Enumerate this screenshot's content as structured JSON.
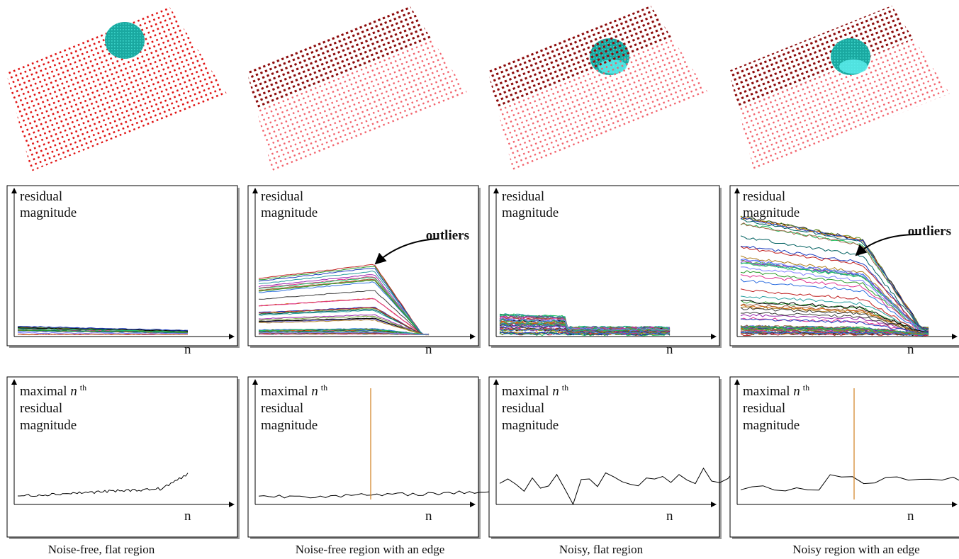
{
  "panels": [
    {
      "caption": "Noise-free, flat region",
      "residual_plot": {
        "y_label": [
          "residual",
          "magnitude"
        ],
        "x_label": "n"
      },
      "max_plot": {
        "y_label": [
          "maximal",
          "n",
          "th",
          "residual",
          "magnitude"
        ],
        "x_label": "n"
      }
    },
    {
      "caption": "Noise-free region with an edge",
      "residual_plot": {
        "y_label": [
          "residual",
          "magnitude"
        ],
        "x_label": "n",
        "annotation": "outliers"
      },
      "max_plot": {
        "y_label": [
          "maximal",
          "n",
          "th",
          "residual",
          "magnitude"
        ],
        "x_label": "n"
      }
    },
    {
      "caption": "Noisy, flat region",
      "residual_plot": {
        "y_label": [
          "residual",
          "magnitude"
        ],
        "x_label": "n"
      },
      "max_plot": {
        "y_label": [
          "maximal",
          "n",
          "th",
          "residual",
          "magnitude"
        ],
        "x_label": "n"
      }
    },
    {
      "caption": "Noisy region with an edge",
      "residual_plot": {
        "y_label": [
          "residual",
          "magnitude"
        ],
        "x_label": "n",
        "annotation": "outliers"
      },
      "max_plot": {
        "y_label": [
          "maximal",
          "n",
          "th",
          "residual",
          "magnitude"
        ],
        "x_label": "n"
      }
    }
  ]
}
